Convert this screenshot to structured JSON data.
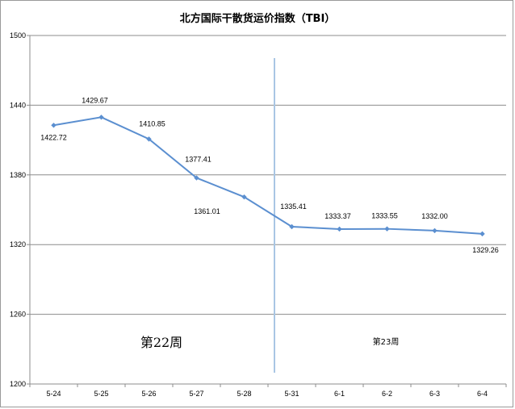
{
  "chart_data": {
    "type": "line",
    "title": "北方国际干散货运价指数（TBI）",
    "categories": [
      "5-24",
      "5-25",
      "5-26",
      "5-27",
      "5-28",
      "5-31",
      "6-1",
      "6-2",
      "6-3",
      "6-4"
    ],
    "values": [
      1422.72,
      1429.67,
      1410.85,
      1377.41,
      1361.01,
      1335.41,
      1333.37,
      1333.55,
      1332.0,
      1329.26
    ],
    "data_labels": [
      "1422.72",
      "1429.67",
      "1410.85",
      "1377.41",
      "1361.01",
      "1335.41",
      "1333.37",
      "1333.55",
      "1332.00",
      "1329.26"
    ],
    "ylim": [
      1200,
      1500
    ],
    "yticks": [
      "1200",
      "1260",
      "1320",
      "1380",
      "1440",
      "1500"
    ],
    "grid": true,
    "line_color": "#5b8fd0",
    "divider_color": "#a9c6e4",
    "annotations": [
      "第22周",
      "第23周"
    ]
  }
}
